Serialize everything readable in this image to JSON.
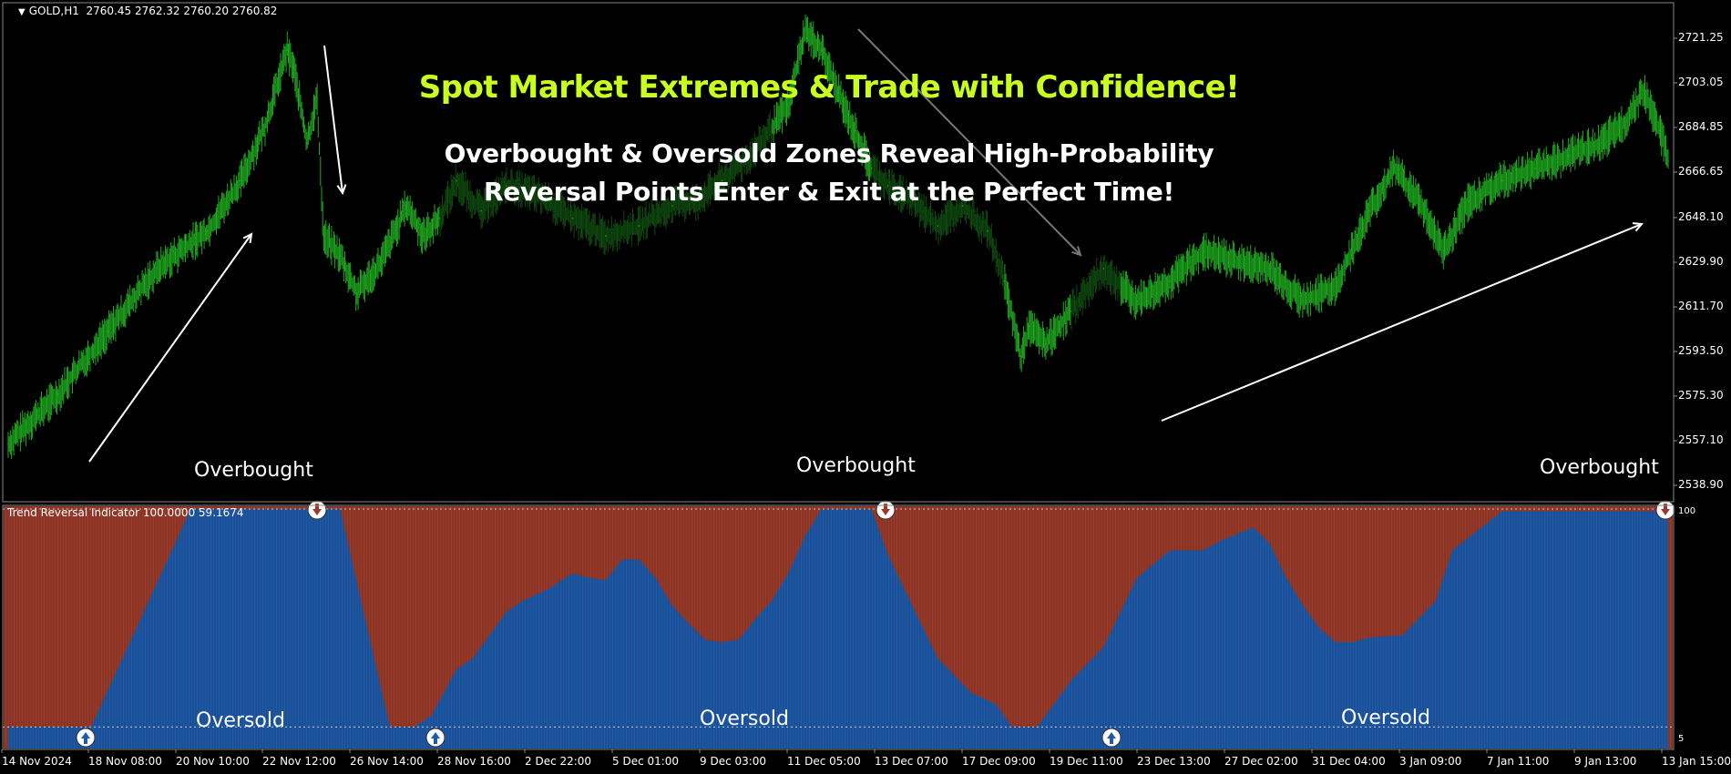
{
  "header": {
    "symbol": "GOLD,H1",
    "ohlc": "2760.45 2762.32 2760.20 2760.82"
  },
  "annotations": {
    "headline": "Spot Market Extremes & Trade with Confidence!",
    "subline_1": "Overbought & Oversold Zones Reveal High-Probability",
    "subline_2": "Reversal Points Enter & Exit at the Perfect Time!",
    "overbought_1": "Overbought",
    "overbought_2": "Overbought",
    "overbought_3": "Overbought",
    "oversold_1": "Oversold",
    "oversold_2": "Oversold",
    "oversold_3": "Oversold"
  },
  "indicator": {
    "label": "Trend Reversal Indicator 100.0000 59.1674",
    "level_high": "100",
    "level_low": "5"
  },
  "price_axis": [
    "2721.25",
    "2703.05",
    "2684.85",
    "2666.65",
    "2648.10",
    "2629.90",
    "2611.70",
    "2593.50",
    "2575.30",
    "2557.10",
    "2538.90"
  ],
  "time_axis": [
    "14 Nov 2024",
    "18 Nov 08:00",
    "20 Nov 10:00",
    "22 Nov 12:00",
    "26 Nov 14:00",
    "28 Nov 16:00",
    "2 Dec 22:00",
    "5 Dec 01:00",
    "9 Dec 03:00",
    "11 Dec 05:00",
    "13 Dec 07:00",
    "17 Dec 09:00",
    "19 Dec 11:00",
    "23 Dec 13:00",
    "27 Dec 02:00",
    "31 Dec 04:00",
    "3 Jan 09:00",
    "7 Jan 11:00",
    "9 Jan 13:00",
    "13 Jan 15:00"
  ],
  "colors": {
    "bull": "#1faa1f",
    "bull_dim": "#0f4a0f",
    "indicator_blue": "#1f5aa8",
    "indicator_red": "#9a3a2a",
    "headline": "#c8ff1e"
  },
  "chart_data": [
    {
      "type": "line",
      "title": "GOLD,H1",
      "ylim": [
        2535,
        2728
      ],
      "series": [
        {
          "name": "GOLD,H1",
          "x": [
            0,
            0.03,
            0.06,
            0.09,
            0.12,
            0.14,
            0.155,
            0.168,
            0.172,
            0.18,
            0.186,
            0.19,
            0.2,
            0.21,
            0.225,
            0.24,
            0.25,
            0.26,
            0.27,
            0.285,
            0.3,
            0.32,
            0.34,
            0.36,
            0.38,
            0.4,
            0.415,
            0.43,
            0.45,
            0.47,
            0.48,
            0.49,
            0.5,
            0.51,
            0.52,
            0.53,
            0.545,
            0.56,
            0.575,
            0.59,
            0.6,
            0.61,
            0.615,
            0.625,
            0.64,
            0.66,
            0.68,
            0.7,
            0.72,
            0.74,
            0.76,
            0.78,
            0.8,
            0.82,
            0.835,
            0.85,
            0.865,
            0.88,
            0.9,
            0.92,
            0.94,
            0.96,
            0.975,
            0.985,
            0.995,
            1.0
          ],
          "values": [
            2555,
            2575,
            2600,
            2625,
            2640,
            2660,
            2682,
            2712,
            2705,
            2675,
            2693,
            2638,
            2630,
            2615,
            2628,
            2650,
            2638,
            2645,
            2660,
            2648,
            2658,
            2654,
            2645,
            2638,
            2642,
            2650,
            2652,
            2660,
            2672,
            2690,
            2720,
            2712,
            2695,
            2680,
            2665,
            2658,
            2652,
            2642,
            2650,
            2640,
            2620,
            2590,
            2602,
            2595,
            2608,
            2625,
            2612,
            2620,
            2632,
            2628,
            2625,
            2612,
            2618,
            2648,
            2665,
            2652,
            2632,
            2652,
            2660,
            2665,
            2670,
            2675,
            2684,
            2696,
            2680,
            2668
          ]
        }
      ]
    },
    {
      "type": "area",
      "title": "Trend Reversal Indicator",
      "ylim": [
        0,
        100
      ],
      "series": [
        {
          "name": "Trend Reversal Indicator",
          "x": [
            0,
            0.05,
            0.11,
            0.15,
            0.17,
            0.185,
            0.2,
            0.23,
            0.245,
            0.255,
            0.27,
            0.28,
            0.3,
            0.31,
            0.325,
            0.34,
            0.35,
            0.36,
            0.37,
            0.38,
            0.39,
            0.4,
            0.41,
            0.42,
            0.43,
            0.44,
            0.45,
            0.46,
            0.47,
            0.48,
            0.49,
            0.5,
            0.51,
            0.52,
            0.53,
            0.54,
            0.55,
            0.56,
            0.58,
            0.595,
            0.605,
            0.62,
            0.64,
            0.66,
            0.68,
            0.7,
            0.72,
            0.73,
            0.75,
            0.76,
            0.77,
            0.78,
            0.79,
            0.8,
            0.81,
            0.82,
            0.84,
            0.86,
            0.87,
            0.9,
            1.0
          ],
          "values": [
            5,
            5,
            100,
            100,
            100,
            100,
            100,
            5,
            5,
            10,
            30,
            35,
            55,
            60,
            65,
            72,
            70,
            69,
            78,
            78,
            70,
            58,
            50,
            43,
            42,
            43,
            52,
            60,
            72,
            88,
            100,
            100,
            100,
            100,
            80,
            65,
            50,
            35,
            20,
            15,
            5,
            5,
            25,
            40,
            70,
            82,
            82,
            86,
            92,
            85,
            70,
            58,
            48,
            42,
            42,
            44,
            45,
            60,
            82,
            99,
            99
          ]
        }
      ]
    }
  ]
}
